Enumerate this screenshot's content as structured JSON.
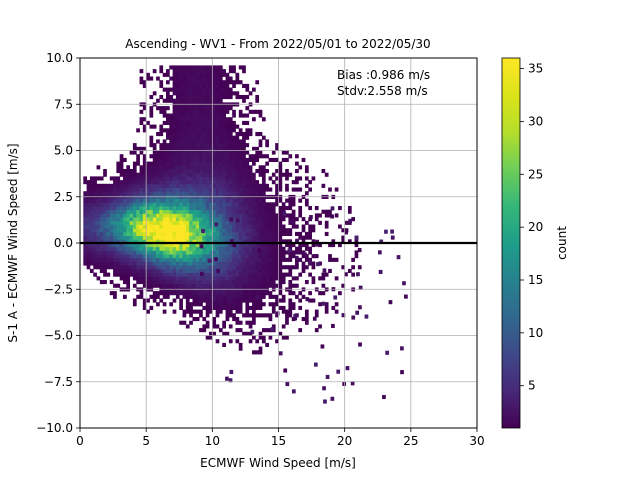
{
  "chart_data": {
    "type": "heatmap",
    "title": "Ascending - WV1 - From 2022/05/01 to 2022/05/30",
    "xlabel": "ECMWF Wind Speed [m/s]",
    "ylabel": "S-1 A - ECMWF Wind Speed [m/s]",
    "xlim": [
      0,
      30
    ],
    "ylim": [
      -10,
      10
    ],
    "xticks": [
      "0",
      "5",
      "10",
      "15",
      "20",
      "25",
      "30"
    ],
    "yticks": [
      "−10.0",
      "−7.5",
      "−5.0",
      "−2.5",
      "0.0",
      "2.5",
      "5.0",
      "7.5",
      "10.0"
    ],
    "grid": true,
    "reference_line_y": 0,
    "colorbar": {
      "label": "count",
      "min": 1,
      "max": 36,
      "ticks": [
        "5",
        "10",
        "15",
        "20",
        "25",
        "30",
        "35"
      ],
      "colormap": "viridis"
    },
    "annotations": [
      "Bias :0.986 m/s",
      "Stdv:2.558 m/s"
    ],
    "bin_size_x": 0.25,
    "bin_size_y": 0.2,
    "density_peak": {
      "x": 6.5,
      "y": 0.2,
      "count": 36
    }
  }
}
